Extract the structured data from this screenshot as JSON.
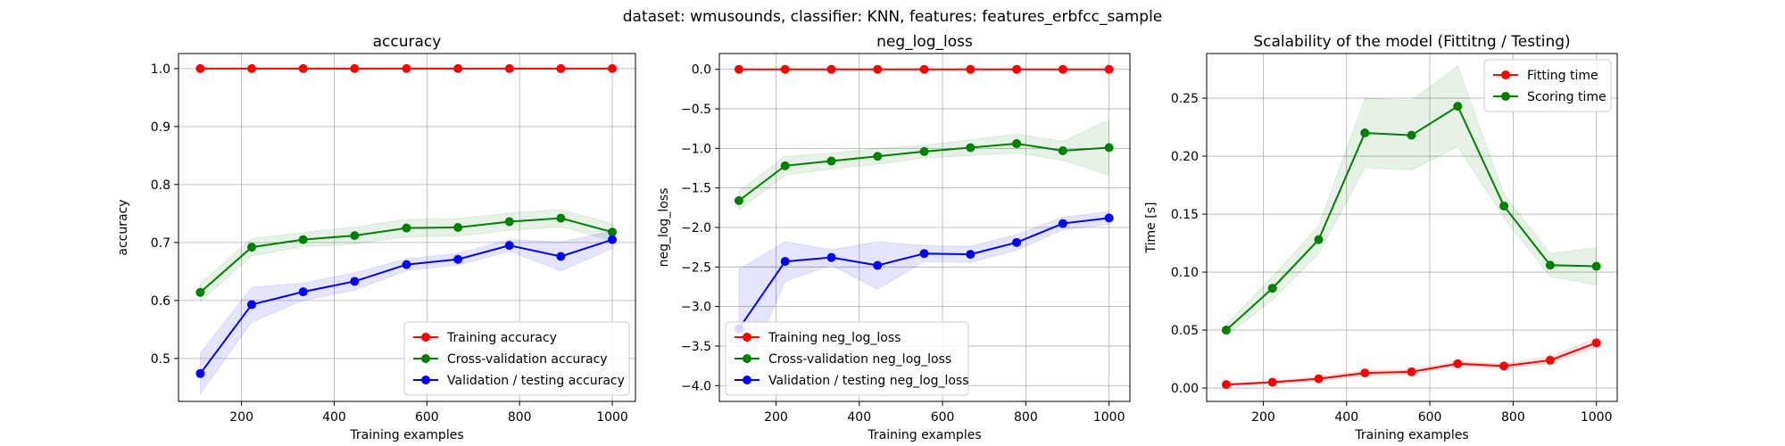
{
  "figure": {
    "suptitle": "dataset: wmusounds, classifier: KNN, features: features_erbfcc_sample"
  },
  "chart_data": [
    {
      "type": "line",
      "title": "accuracy",
      "xlabel": "Training examples",
      "ylabel": "accuracy",
      "xlim": [
        64,
        1050
      ],
      "ylim": [
        0.426,
        1.026
      ],
      "xticks": [
        200,
        400,
        600,
        800,
        1000
      ],
      "yticks": [
        0.5,
        0.6,
        0.7,
        0.8,
        0.9,
        1.0
      ],
      "ytick_decimals": 1,
      "grid": true,
      "legend": "lower-right",
      "x": [
        111,
        222,
        333,
        444,
        556,
        667,
        778,
        889,
        1000
      ],
      "series": [
        {
          "name": "Training accuracy",
          "color": "#ff0000",
          "values": [
            1.0,
            1.0,
            1.0,
            1.0,
            1.0,
            1.0,
            1.0,
            1.0,
            1.0
          ],
          "band": [
            0.0,
            0.0,
            0.0,
            0.0,
            0.0,
            0.0,
            0.0,
            0.0,
            0.0
          ]
        },
        {
          "name": "Cross-validation accuracy",
          "color": "#008000",
          "values": [
            0.614,
            0.692,
            0.705,
            0.712,
            0.725,
            0.726,
            0.736,
            0.742,
            0.718
          ],
          "band": [
            0.015,
            0.015,
            0.012,
            0.015,
            0.015,
            0.015,
            0.015,
            0.015,
            0.015
          ]
        },
        {
          "name": "Validation / testing accuracy",
          "color": "#0000ff",
          "values": [
            0.474,
            0.593,
            0.615,
            0.633,
            0.662,
            0.671,
            0.695,
            0.676,
            0.705
          ],
          "band": [
            0.035,
            0.03,
            0.015,
            0.015,
            0.01,
            0.01,
            0.01,
            0.025,
            0.015
          ]
        }
      ]
    },
    {
      "type": "line",
      "title": "neg_log_loss",
      "xlabel": "Training examples",
      "ylabel": "neg_log_loss",
      "xlim": [
        64,
        1050
      ],
      "ylim": [
        -4.2,
        0.2
      ],
      "xticks": [
        200,
        400,
        600,
        800,
        1000
      ],
      "yticks": [
        0.0,
        -0.5,
        -1.0,
        -1.5,
        -2.0,
        -2.5,
        -3.0,
        -3.5,
        -4.0
      ],
      "ytick_decimals": 1,
      "grid": true,
      "legend": "lower-left",
      "x": [
        111,
        222,
        333,
        444,
        556,
        667,
        778,
        889,
        1000
      ],
      "series": [
        {
          "name": "Training neg_log_loss",
          "color": "#ff0000",
          "values": [
            0.0,
            0.0,
            0.0,
            0.0,
            0.0,
            0.0,
            0.0,
            0.0,
            0.0
          ],
          "band": [
            0.0,
            0.0,
            0.0,
            0.0,
            0.0,
            0.0,
            0.0,
            0.0,
            0.0
          ]
        },
        {
          "name": "Cross-validation neg_log_loss",
          "color": "#008000",
          "values": [
            -1.66,
            -1.22,
            -1.16,
            -1.1,
            -1.04,
            -0.99,
            -0.94,
            -1.03,
            -0.99
          ],
          "band": [
            0.12,
            0.12,
            0.1,
            0.1,
            0.08,
            0.1,
            0.12,
            0.12,
            0.35
          ]
        },
        {
          "name": "Validation / testing neg_log_loss",
          "color": "#0000ff",
          "values": [
            -3.28,
            -2.43,
            -2.38,
            -2.48,
            -2.33,
            -2.34,
            -2.19,
            -1.95,
            -1.88
          ],
          "band": [
            0.75,
            0.25,
            0.1,
            0.3,
            0.1,
            0.1,
            0.1,
            0.08,
            0.08
          ]
        }
      ]
    },
    {
      "type": "line",
      "title": "Scalability of the model (Fittitng / Testing)",
      "xlabel": "Training examples",
      "ylabel": "Time [s]",
      "xlim": [
        64,
        1050
      ],
      "ylim": [
        -0.0115,
        0.2885
      ],
      "xticks": [
        200,
        400,
        600,
        800,
        1000
      ],
      "yticks": [
        0.0,
        0.05,
        0.1,
        0.15,
        0.2,
        0.25
      ],
      "ytick_decimals": 2,
      "grid": true,
      "legend": "top-right",
      "x": [
        111,
        222,
        333,
        444,
        556,
        667,
        778,
        889,
        1000
      ],
      "series": [
        {
          "name": "Fitting time",
          "color": "#ff0000",
          "values": [
            0.003,
            0.005,
            0.008,
            0.013,
            0.014,
            0.021,
            0.019,
            0.024,
            0.039
          ],
          "band": [
            0.001,
            0.001,
            0.002,
            0.002,
            0.002,
            0.002,
            0.002,
            0.003,
            0.004
          ]
        },
        {
          "name": "Scoring time",
          "color": "#008000",
          "values": [
            0.05,
            0.086,
            0.128,
            0.22,
            0.218,
            0.243,
            0.157,
            0.106,
            0.105
          ],
          "band": [
            0.005,
            0.01,
            0.012,
            0.03,
            0.03,
            0.035,
            0.01,
            0.01,
            0.016
          ]
        }
      ]
    }
  ]
}
